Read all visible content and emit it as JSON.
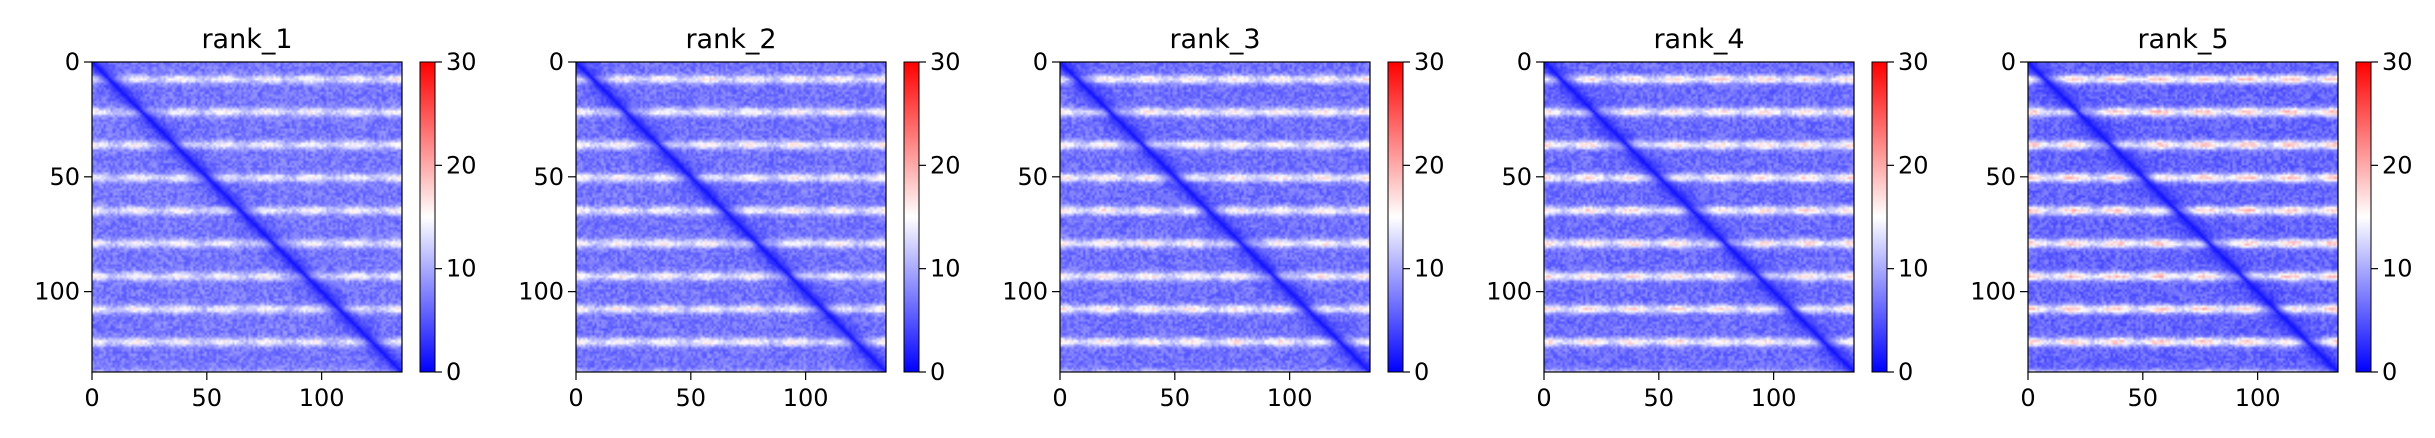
{
  "chart_data": [
    {
      "type": "heatmap",
      "title": "rank_1",
      "size": 135,
      "contrast": 0.65,
      "xticks": [
        0,
        50,
        100
      ],
      "yticks": [
        0,
        50,
        100
      ],
      "colorbar": {
        "min": 0,
        "max": 30,
        "ticks": [
          0,
          10,
          20,
          30
        ]
      }
    },
    {
      "type": "heatmap",
      "title": "rank_2",
      "size": 135,
      "contrast": 0.72,
      "xticks": [
        0,
        50,
        100
      ],
      "yticks": [
        0,
        50,
        100
      ],
      "colorbar": {
        "min": 0,
        "max": 30,
        "ticks": [
          0,
          10,
          20,
          30
        ]
      }
    },
    {
      "type": "heatmap",
      "title": "rank_3",
      "size": 135,
      "contrast": 0.78,
      "xticks": [
        0,
        50,
        100
      ],
      "yticks": [
        0,
        50,
        100
      ],
      "colorbar": {
        "min": 0,
        "max": 30,
        "ticks": [
          0,
          10,
          20,
          30
        ]
      }
    },
    {
      "type": "heatmap",
      "title": "rank_4",
      "size": 135,
      "contrast": 0.85,
      "xticks": [
        0,
        50,
        100
      ],
      "yticks": [
        0,
        50,
        100
      ],
      "colorbar": {
        "min": 0,
        "max": 30,
        "ticks": [
          0,
          10,
          20,
          30
        ]
      }
    },
    {
      "type": "heatmap",
      "title": "rank_5",
      "size": 135,
      "contrast": 1.0,
      "xticks": [
        0,
        50,
        100
      ],
      "yticks": [
        0,
        50,
        100
      ],
      "colorbar": {
        "min": 0,
        "max": 30,
        "ticks": [
          0,
          10,
          20,
          30
        ]
      }
    }
  ],
  "colors": {
    "low": "#0000ff",
    "mid": "#ffffff",
    "high": "#ff0000"
  }
}
